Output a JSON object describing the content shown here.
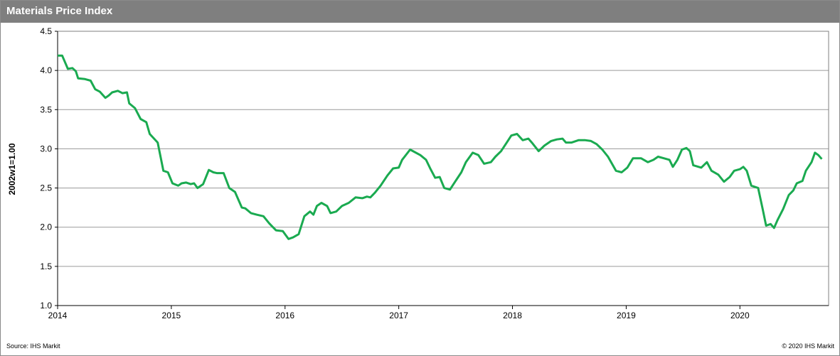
{
  "chart_data": {
    "type": "line",
    "title": "Materials Price Index",
    "y_label": "2002w1=1.00",
    "source": "Source: IHS Markit",
    "copyright": "© 2020 IHS Markit",
    "xlim": [
      2014,
      2020.78
    ],
    "xticks": [
      2014,
      2015,
      2016,
      2017,
      2018,
      2019,
      2020
    ],
    "ylim": [
      1,
      4.5
    ],
    "yticks": [
      {
        "value": 1,
        "label": "1.0"
      },
      1.5,
      {
        "value": 2,
        "label": "2.0"
      },
      2.5,
      {
        "value": 3,
        "label": "3.0"
      },
      3.5,
      {
        "value": 4,
        "label": "4.0"
      },
      4.5
    ],
    "grid": true,
    "x": [
      2014.0,
      2014.04,
      2014.09,
      2014.13,
      2014.16,
      2014.18,
      2014.24,
      2014.29,
      2014.33,
      2014.37,
      2014.42,
      2014.45,
      2014.48,
      2014.53,
      2014.57,
      2014.61,
      2014.63,
      2014.68,
      2014.73,
      2014.78,
      2014.81,
      2014.88,
      2014.93,
      2014.97,
      2015.01,
      2015.06,
      2015.09,
      2015.13,
      2015.17,
      2015.2,
      2015.23,
      2015.28,
      2015.33,
      2015.37,
      2015.4,
      2015.46,
      2015.51,
      2015.56,
      2015.62,
      2015.65,
      2015.7,
      2015.75,
      2015.81,
      2015.86,
      2015.92,
      2015.98,
      2016.03,
      2016.07,
      2016.12,
      2016.17,
      2016.22,
      2016.25,
      2016.28,
      2016.32,
      2016.37,
      2016.4,
      2016.45,
      2016.5,
      2016.56,
      2016.62,
      2016.68,
      2016.72,
      2016.75,
      2016.79,
      2016.84,
      2016.9,
      2016.95,
      2017.0,
      2017.03,
      2017.1,
      2017.19,
      2017.24,
      2017.28,
      2017.32,
      2017.36,
      2017.4,
      2017.45,
      2017.5,
      2017.55,
      2017.59,
      2017.65,
      2017.7,
      2017.75,
      2017.81,
      2017.85,
      2017.9,
      2017.95,
      2017.99,
      2018.04,
      2018.09,
      2018.14,
      2018.17,
      2018.23,
      2018.28,
      2018.34,
      2018.39,
      2018.44,
      2018.47,
      2018.52,
      2018.58,
      2018.64,
      2018.69,
      2018.74,
      2018.79,
      2018.84,
      2018.91,
      2018.96,
      2019.01,
      2019.06,
      2019.13,
      2019.19,
      2019.24,
      2019.28,
      2019.33,
      2019.38,
      2019.41,
      2019.45,
      2019.49,
      2019.53,
      2019.56,
      2019.59,
      2019.66,
      2019.71,
      2019.75,
      2019.81,
      2019.86,
      2019.91,
      2019.95,
      2020.0,
      2020.03,
      2020.06,
      2020.1,
      2020.16,
      2020.2,
      2020.23,
      2020.27,
      2020.3,
      2020.33,
      2020.38,
      2020.43,
      2020.47,
      2020.5,
      2020.55,
      2020.58,
      2020.63,
      2020.66,
      2020.69,
      2020.72
    ],
    "series": [
      {
        "name": "Materials Price Index",
        "color": "#1aaa50",
        "values": [
          4.19,
          4.19,
          4.02,
          4.03,
          3.99,
          3.9,
          3.89,
          3.87,
          3.76,
          3.73,
          3.65,
          3.68,
          3.72,
          3.74,
          3.71,
          3.72,
          3.58,
          3.52,
          3.38,
          3.34,
          3.19,
          3.08,
          2.72,
          2.7,
          2.56,
          2.53,
          2.56,
          2.57,
          2.55,
          2.56,
          2.5,
          2.55,
          2.73,
          2.7,
          2.69,
          2.69,
          2.5,
          2.45,
          2.25,
          2.24,
          2.18,
          2.16,
          2.14,
          2.05,
          1.96,
          1.95,
          1.85,
          1.87,
          1.91,
          2.14,
          2.2,
          2.16,
          2.27,
          2.31,
          2.27,
          2.18,
          2.2,
          2.27,
          2.31,
          2.38,
          2.37,
          2.39,
          2.38,
          2.44,
          2.53,
          2.66,
          2.75,
          2.76,
          2.86,
          2.99,
          2.92,
          2.86,
          2.74,
          2.63,
          2.64,
          2.5,
          2.48,
          2.59,
          2.7,
          2.83,
          2.95,
          2.92,
          2.81,
          2.83,
          2.9,
          2.97,
          3.08,
          3.17,
          3.19,
          3.11,
          3.13,
          3.08,
          2.97,
          3.04,
          3.1,
          3.12,
          3.13,
          3.08,
          3.08,
          3.11,
          3.11,
          3.1,
          3.06,
          2.99,
          2.9,
          2.72,
          2.7,
          2.76,
          2.88,
          2.88,
          2.83,
          2.86,
          2.9,
          2.88,
          2.86,
          2.77,
          2.86,
          2.99,
          3.01,
          2.97,
          2.79,
          2.76,
          2.83,
          2.72,
          2.67,
          2.58,
          2.64,
          2.72,
          2.74,
          2.77,
          2.72,
          2.53,
          2.5,
          2.23,
          2.02,
          2.04,
          1.99,
          2.09,
          2.23,
          2.41,
          2.47,
          2.56,
          2.59,
          2.72,
          2.83,
          2.95,
          2.92,
          2.87
        ]
      }
    ]
  }
}
